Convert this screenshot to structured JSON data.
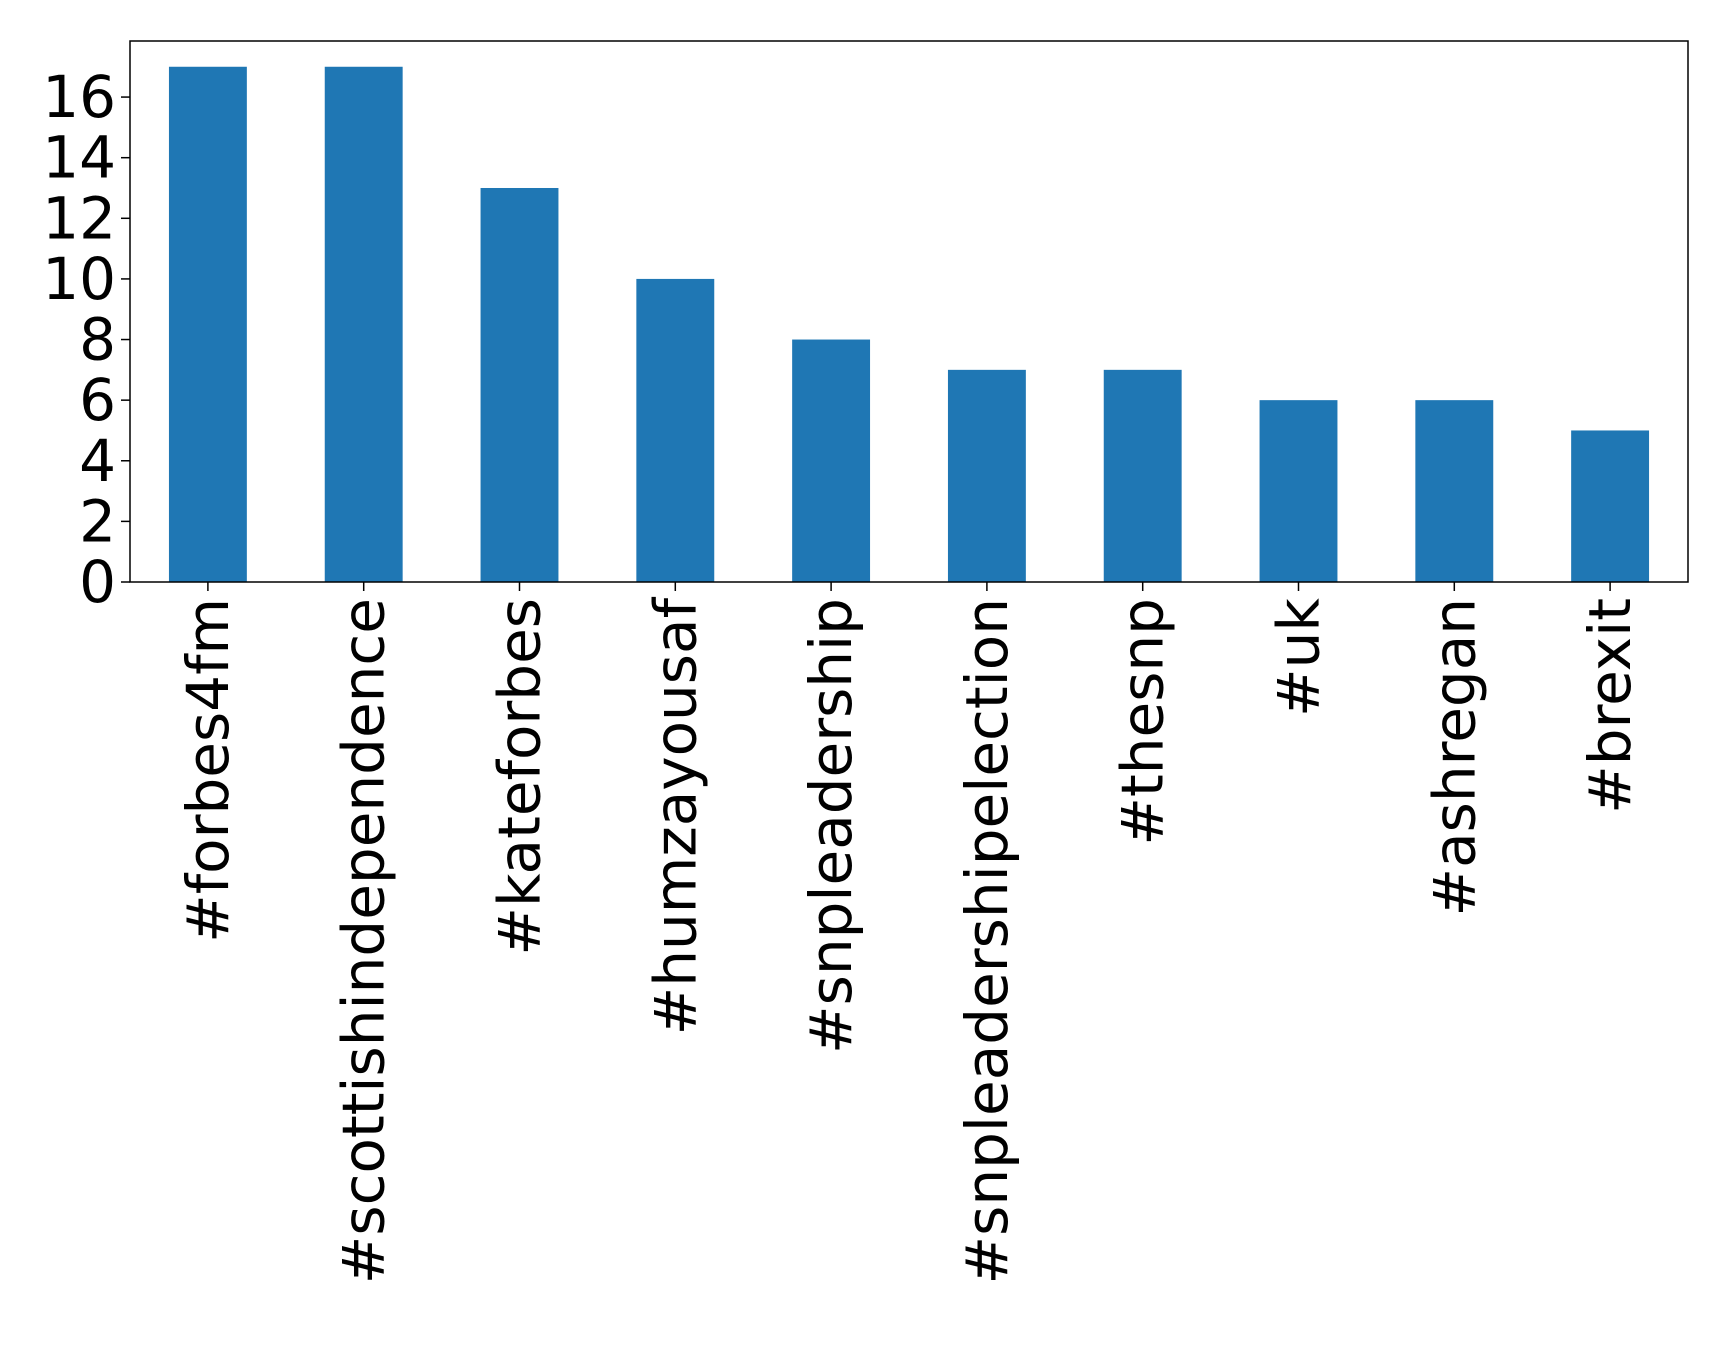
{
  "chart_data": {
    "type": "bar",
    "title": "",
    "xlabel": "",
    "ylabel": "",
    "categories": [
      "#forbes4fm",
      "#scottishindependence",
      "#kateforbes",
      "#humzayousaf",
      "#snpleadership",
      "#snpleadershipelection",
      "#thesnp",
      "#uk",
      "#ashregan",
      "#brexit"
    ],
    "values": [
      17,
      17,
      13,
      10,
      8,
      7,
      7,
      6,
      6,
      5
    ],
    "ylim": [
      0,
      17.85
    ],
    "yticks": [
      0,
      2,
      4,
      6,
      8,
      10,
      12,
      14,
      16
    ],
    "ytick_labels": [
      "0",
      "2",
      "4",
      "6",
      "8",
      "10",
      "12",
      "14",
      "16"
    ],
    "grid": false,
    "legend": "none",
    "bar_color": "#1f77b4",
    "x_tick_rotation": "vertical"
  }
}
